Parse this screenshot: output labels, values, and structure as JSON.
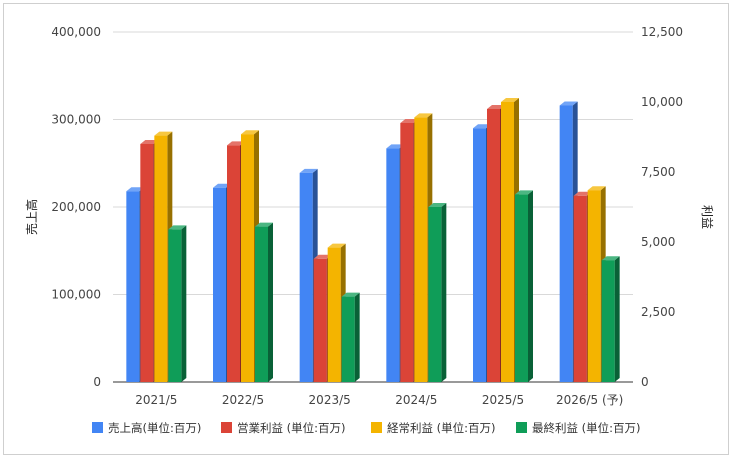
{
  "chart_data": {
    "type": "bar",
    "categories": [
      "2021/5",
      "2022/5",
      "2023/5",
      "2024/5",
      "2025/5",
      "2026/5 (予)"
    ],
    "series": [
      {
        "name": "売上高(単位:百万)",
        "axis": "left",
        "color": "#4285f4",
        "values": [
          218000,
          222000,
          239000,
          267000,
          290000,
          316000
        ]
      },
      {
        "name": "営業利益 (単位:百万)",
        "axis": "right",
        "color": "#db4437",
        "values": [
          8500,
          8450,
          4400,
          9250,
          9750,
          6650
        ]
      },
      {
        "name": "経常利益 (単位:百万)",
        "axis": "right",
        "color": "#f4b400",
        "values": [
          8800,
          8850,
          4800,
          9450,
          10000,
          6850
        ]
      },
      {
        "name": "最終利益 (単位:百万)",
        "axis": "right",
        "color": "#0f9d58",
        "values": [
          5450,
          5550,
          3050,
          6250,
          6700,
          4350
        ]
      }
    ],
    "y_left": {
      "label": "売上高",
      "range": [
        0,
        400000
      ],
      "ticks": [
        "0",
        "100,000",
        "200,000",
        "300,000",
        "400,000"
      ]
    },
    "y_right": {
      "label": "利益",
      "range": [
        0,
        12500
      ],
      "ticks": [
        "0",
        "2,500",
        "5,000",
        "7,500",
        "10,000",
        "12,500"
      ]
    },
    "grid": true,
    "legend_position": "bottom",
    "style": "3d-bars"
  }
}
